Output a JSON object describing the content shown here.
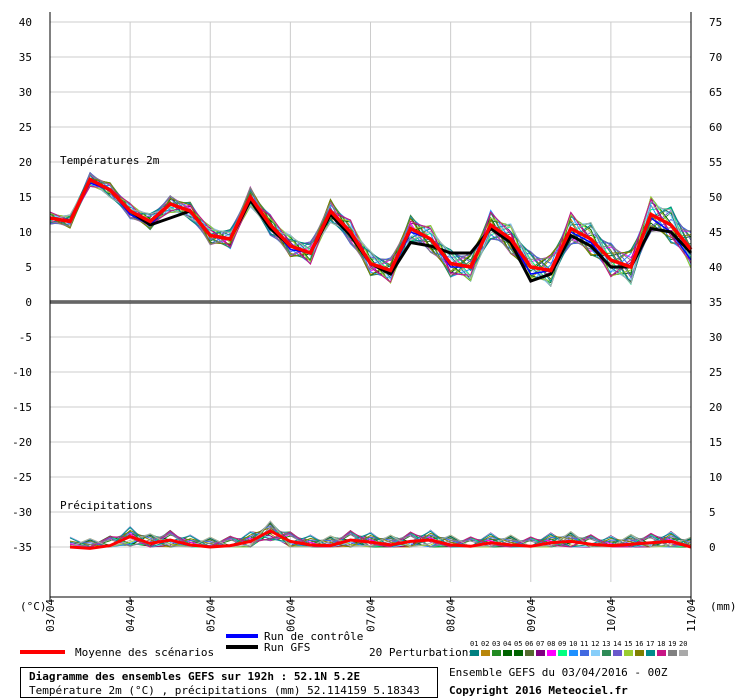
{
  "chart_data": {
    "type": "line",
    "left_axis_unit": "(°C)",
    "right_axis_unit": "(mm)",
    "left_ticks": [
      40,
      35,
      30,
      25,
      20,
      15,
      10,
      5,
      0,
      -5,
      -10,
      -15,
      -20,
      -25,
      -30,
      -35
    ],
    "right_ticks": [
      75,
      70,
      65,
      60,
      55,
      50,
      45,
      40,
      35,
      30,
      25,
      20,
      15,
      10,
      5,
      0
    ],
    "ylim": [
      -40,
      40
    ],
    "xlim": [
      0,
      64
    ],
    "x_tick_labels": [
      "03/04",
      "04/04",
      "05/04",
      "06/04",
      "07/04",
      "08/04",
      "09/04",
      "10/04",
      "11/04"
    ],
    "temp_label": "Températures 2m",
    "precip_label": "Précipitations",
    "temperature": {
      "x": [
        0,
        2,
        4,
        6,
        8,
        10,
        12,
        14,
        16,
        18,
        20,
        22,
        24,
        26,
        28,
        30,
        32,
        34,
        36,
        38,
        40,
        42,
        44,
        46,
        48,
        50,
        52,
        54,
        56,
        58,
        60,
        62,
        64
      ],
      "mean": [
        12,
        11.5,
        17.5,
        16,
        13,
        11.5,
        14,
        13,
        9.5,
        9,
        15,
        11,
        8,
        7,
        13,
        10,
        5.5,
        4.5,
        10.5,
        9,
        5.5,
        5,
        11,
        9,
        5,
        4.5,
        10.5,
        9,
        6,
        5,
        12.5,
        11,
        7.5
      ],
      "gfs": [
        12,
        11.5,
        17.5,
        16,
        13,
        11,
        12,
        13,
        9.5,
        9,
        14.5,
        10.5,
        8,
        7,
        12.5,
        9.5,
        5.5,
        4,
        8.5,
        8,
        7,
        7,
        10.5,
        8.5,
        3,
        4,
        9.5,
        8,
        5,
        5,
        10.5,
        10,
        7
      ],
      "control": [
        12,
        11.5,
        17,
        16,
        12.5,
        11,
        14,
        13,
        9.5,
        9,
        14.5,
        11,
        7.5,
        7,
        13,
        10,
        5.5,
        4,
        10,
        9,
        5,
        5,
        11,
        9,
        4,
        4.5,
        10,
        8.5,
        5,
        5,
        12,
        10,
        6
      ]
    },
    "precipitation": {
      "x": [
        2,
        4,
        6,
        8,
        10,
        12,
        14,
        16,
        18,
        20,
        22,
        24,
        26,
        28,
        30,
        32,
        34,
        36,
        38,
        40,
        42,
        44,
        46,
        48,
        50,
        52,
        54,
        56,
        58,
        60,
        62,
        64
      ],
      "mean": [
        0,
        -0.2,
        0.2,
        1.5,
        0.5,
        1,
        0.3,
        0,
        0.2,
        0.8,
        2.3,
        0.8,
        0.3,
        0.2,
        1,
        0.7,
        0.3,
        0.8,
        1,
        0.3,
        0.1,
        0.6,
        0.3,
        0.1,
        0.6,
        0.8,
        0.4,
        0.2,
        0.4,
        0.6,
        0.8,
        0
      ]
    },
    "legend": {
      "mean": "Moyenne des scénarios",
      "control": "Run de contrôle",
      "gfs": "Run GFS",
      "perturbations": "20 Perturbations",
      "perturbation_ids": [
        "01",
        "02",
        "03",
        "04",
        "05",
        "06",
        "07",
        "08",
        "09",
        "10",
        "11",
        "12",
        "13",
        "14",
        "15",
        "16",
        "17",
        "18",
        "19",
        "20"
      ]
    },
    "colors": {
      "mean": "#ff0000",
      "gfs": "#000000",
      "control": "#0000ff",
      "perturbations": [
        "#008080",
        "#b8860b",
        "#228b22",
        "#006400",
        "#006400",
        "#556b2f",
        "#800080",
        "#ff00ff",
        "#00ff80",
        "#1e90ff",
        "#4169e1",
        "#87cefa",
        "#2e8b57",
        "#6a5acd",
        "#9acd32",
        "#808000",
        "#008b8b",
        "#c71585",
        "#808080",
        "#a9a9a9"
      ]
    }
  },
  "footer": {
    "title": "Diagramme des ensembles GEFS sur 192h : 52.1N 5.2E",
    "subtitle": "Température 2m (°C) , précipitations (mm) 52.114159 5.18343",
    "ensemble_info": "Ensemble GEFS du 03/04/2016 - 00Z",
    "copyright": "Copyright 2016 Meteociel.fr"
  }
}
